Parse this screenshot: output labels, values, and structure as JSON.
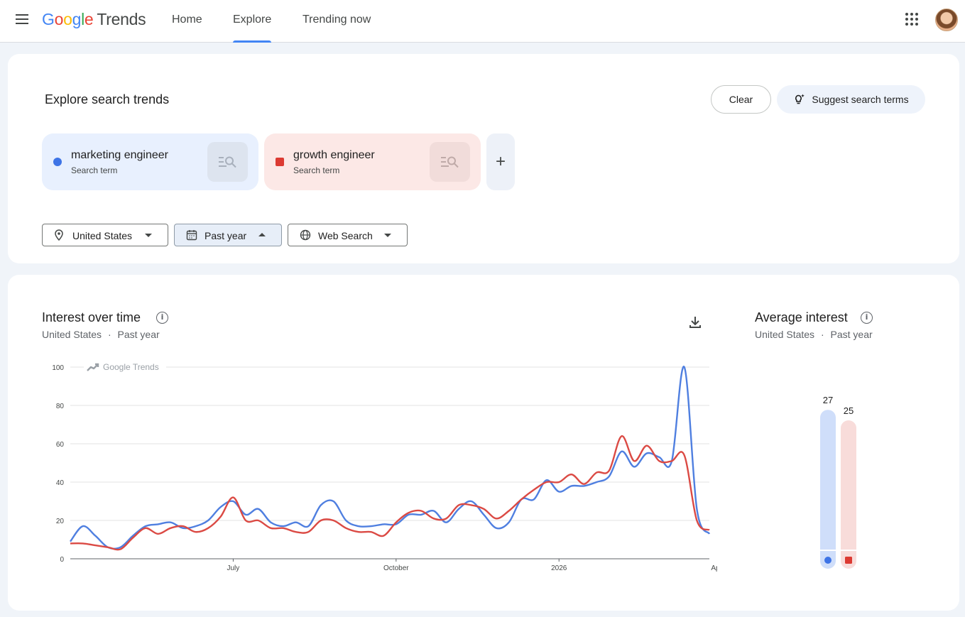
{
  "header": {
    "logo_google": [
      "G",
      "o",
      "o",
      "g",
      "l",
      "e"
    ],
    "logo_trends": "Trends",
    "tabs": [
      {
        "label": "Home",
        "active": false
      },
      {
        "label": "Explore",
        "active": true
      },
      {
        "label": "Trending now",
        "active": false
      }
    ]
  },
  "explore": {
    "title": "Explore search trends",
    "clear_label": "Clear",
    "suggest_label": "Suggest search terms",
    "terms": [
      {
        "name": "marketing engineer",
        "type": "Search term",
        "color": "#3e74e6"
      },
      {
        "name": "growth engineer",
        "type": "Search term",
        "color": "#dc3a32"
      }
    ],
    "add_label": "+",
    "filters": {
      "region": "United States",
      "time": "Past year",
      "property": "Web Search"
    }
  },
  "interest_over_time": {
    "title": "Interest over time",
    "subtitle_region": "United States",
    "subtitle_sep": "·",
    "subtitle_time": "Past year",
    "watermark": "Google Trends"
  },
  "average_interest": {
    "title": "Average interest",
    "subtitle_region": "United States",
    "subtitle_sep": "·",
    "subtitle_time": "Past year"
  },
  "chart_data": [
    {
      "type": "line",
      "ylim": [
        0,
        100
      ],
      "yticks": [
        0,
        20,
        40,
        60,
        80,
        100
      ],
      "xticks": [
        {
          "label": "July",
          "week": 13
        },
        {
          "label": "October",
          "week": 26
        },
        {
          "label": "2026",
          "week": 39
        },
        {
          "label": "April",
          "week": 51.7
        }
      ],
      "series": [
        {
          "name": "marketing engineer",
          "color": "#4f7fe0",
          "values": [
            9,
            17,
            12,
            6,
            6,
            12,
            17,
            18,
            19,
            16,
            17,
            20,
            27,
            30,
            23,
            26,
            19,
            17,
            19,
            17,
            28,
            30,
            20,
            17,
            17,
            18,
            18,
            23,
            23,
            25,
            19,
            26,
            30,
            23,
            16,
            19,
            31,
            31,
            41,
            35,
            38,
            38,
            40,
            43,
            56,
            48,
            55,
            53,
            51,
            100,
            26,
            13
          ]
        },
        {
          "name": "growth engineer",
          "color": "#db4a44",
          "values": [
            8,
            8,
            7,
            6,
            5,
            11,
            16,
            13,
            16,
            17,
            14,
            16,
            22,
            32,
            20,
            20,
            16,
            16,
            14,
            14,
            20,
            20,
            16,
            14,
            14,
            12,
            19,
            24,
            25,
            21,
            21,
            28,
            28,
            26,
            21,
            25,
            31,
            36,
            40,
            40,
            44,
            39,
            45,
            46,
            64,
            51,
            59,
            51,
            51,
            54,
            20,
            15
          ]
        }
      ]
    },
    {
      "type": "bar",
      "categories": [
        "marketing engineer",
        "growth engineer"
      ],
      "values": [
        27,
        25
      ],
      "colors": [
        "#cfdefa",
        "#f8dcda"
      ]
    }
  ]
}
